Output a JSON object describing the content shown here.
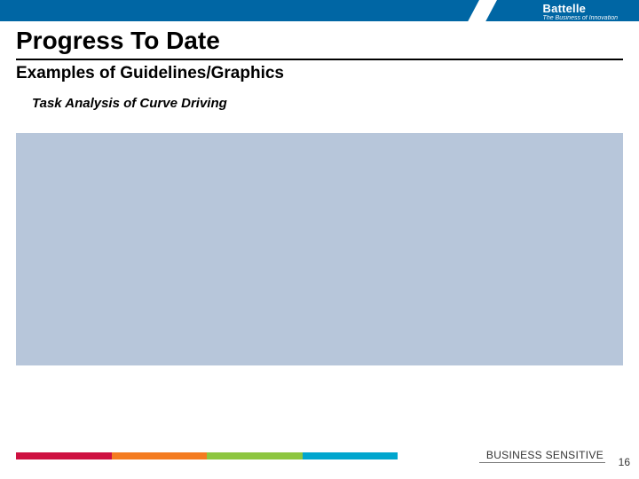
{
  "banner": {
    "bg_color": "#0066a4",
    "logo": {
      "name": "Battelle",
      "tagline": "The Business of Innovation"
    }
  },
  "title": "Progress To Date",
  "subtitle": "Examples of Guidelines/Graphics",
  "task_line": "Task Analysis of Curve Driving",
  "content_block": {
    "bg_color": "#b7c6da"
  },
  "footer": {
    "stripe_colors": [
      "#ce1141",
      "#f47b20",
      "#8dc63f",
      "#00a6ce"
    ],
    "classification": "BUSINESS SENSITIVE",
    "page_number": "16"
  },
  "typography": {
    "title_fontsize": 28,
    "subtitle_fontsize": 19,
    "task_fontsize": 15,
    "footer_fontsize": 12
  }
}
